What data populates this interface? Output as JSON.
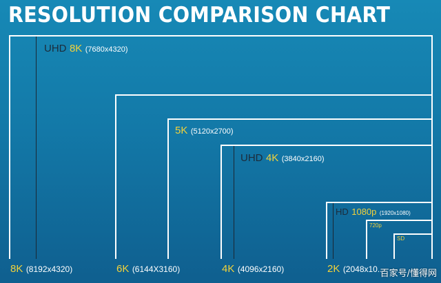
{
  "title": "RESOLUTION COMPARISON CHART",
  "colors": {
    "background_top": "#1789b6",
    "background_bottom": "#0f5f8f",
    "accent": "#f2d23a",
    "frame": "#ffffff",
    "marker_line": "#1b2733"
  },
  "boxes": {
    "8k": {
      "bottom_prefix": "8K",
      "bottom_res": "(8192x4320)"
    },
    "6k": {
      "bottom_prefix": "6K",
      "bottom_res": "(6144X3160)"
    },
    "5k": {
      "prefix": "5K",
      "res": "(5120x2700)"
    },
    "4k": {
      "bottom_prefix": "4K",
      "bottom_res": "(4096x2160)"
    },
    "2k": {
      "bottom_prefix": "2K",
      "bottom_res": "(2048x10..."
    },
    "720p": {
      "label": "720p"
    },
    "sd": {
      "label": "SD"
    }
  },
  "markers": {
    "uhd8k": {
      "pre": "UHD",
      "name": "8K",
      "res": "(7680x4320)"
    },
    "uhd4k": {
      "pre": "UHD",
      "name": "4K",
      "res": "(3840x2160)"
    },
    "hd1080": {
      "pre": "HD",
      "name": "1080p",
      "res": "(1920x1080)"
    }
  },
  "watermark": "百家号/懂得网"
}
